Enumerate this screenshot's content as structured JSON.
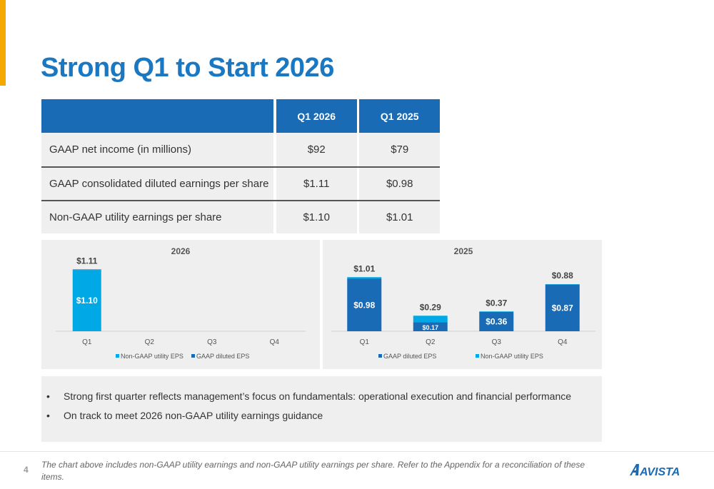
{
  "page": {
    "title": "Strong Q1 to Start 2026",
    "number": "4"
  },
  "table": {
    "headers": [
      "",
      "Q1 2026",
      "Q1 2025"
    ],
    "rows": [
      {
        "label": "GAAP net income (in millions)",
        "q1_2026": "$92",
        "q1_2025": "$79"
      },
      {
        "label": "GAAP consolidated diluted earnings per share",
        "q1_2026": "$1.11",
        "q1_2025": "$0.98"
      },
      {
        "label": "Non-GAAP utility earnings per share",
        "q1_2026": "$1.10",
        "q1_2025": "$1.01"
      }
    ]
  },
  "colors": {
    "dark_blue": "#1a6bb5",
    "light_blue": "#00a9e6",
    "title_blue": "#1a78c2",
    "accent": "#f5a800"
  },
  "chart_data": [
    {
      "type": "bar",
      "title": "2026",
      "categories": [
        "Q1",
        "Q2",
        "Q3",
        "Q4"
      ],
      "series": [
        {
          "name": "Non-GAAP utility EPS",
          "values": [
            1.1,
            null,
            null,
            null
          ],
          "labels": [
            "$1.10",
            "",
            "",
            ""
          ]
        },
        {
          "name": "GAAP diluted EPS",
          "values": [
            1.11,
            null,
            null,
            null
          ],
          "labels": [
            "$1.11",
            "",
            "",
            ""
          ]
        }
      ],
      "legend": [
        "Non-GAAP utility EPS",
        "GAAP diluted EPS"
      ],
      "legend_position": "bottom",
      "grid": false
    },
    {
      "type": "bar",
      "title": "2025",
      "categories": [
        "Q1",
        "Q2",
        "Q3",
        "Q4"
      ],
      "series": [
        {
          "name": "GAAP diluted EPS",
          "values": [
            0.98,
            0.17,
            0.36,
            0.87
          ],
          "labels": [
            "$0.98",
            "$0.17",
            "$0.36",
            "$0.87"
          ]
        },
        {
          "name": "Non-GAAP utility EPS",
          "values": [
            1.01,
            0.29,
            0.37,
            0.88
          ],
          "labels": [
            "$1.01",
            "$0.29",
            "$0.37",
            "$0.88"
          ]
        }
      ],
      "legend": [
        "GAAP diluted EPS",
        "Non-GAAP utility EPS"
      ],
      "legend_position": "bottom",
      "grid": false
    }
  ],
  "bullets": [
    "Strong first quarter reflects management’s focus on fundamentals: operational execution and financial performance",
    "On track to meet 2026 non-GAAP utility earnings guidance"
  ],
  "bullet_glyph": "•",
  "footnote": "The chart above includes non-GAAP utility earnings and non-GAAP utility earnings per share. Refer to the Appendix for a reconciliation of these items.",
  "logo": {
    "text": "AVISTA",
    "icon": "avista-logo-icon"
  }
}
